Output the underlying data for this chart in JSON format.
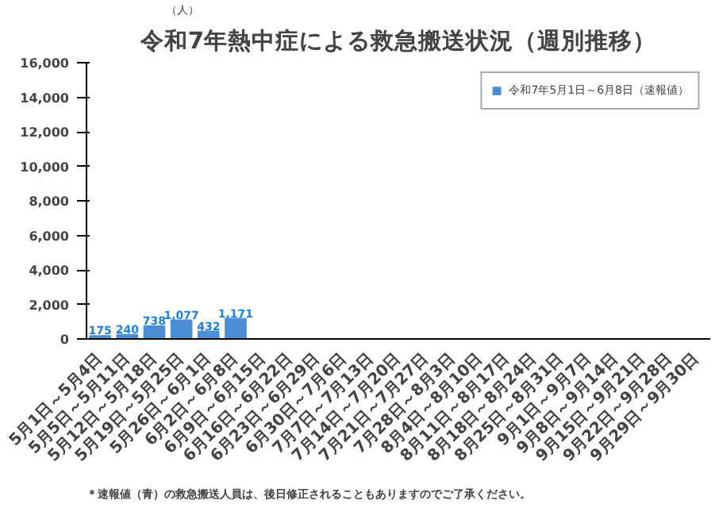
{
  "chart_data": {
    "type": "bar",
    "title": "令和7年熱中症による救急搬送状況（週別推移）",
    "ylabel": "（人）",
    "categories": [
      "5月1日～5月4日",
      "5月5日～5月11日",
      "5月12日～5月18日",
      "5月19日～5月25日",
      "5月26日～6月1日",
      "6月2日～6月8日",
      "6月9日～6月15日",
      "6月16日～6月22日",
      "6月23日～6月29日",
      "6月30日～7月6日",
      "7月7日～7月13日",
      "7月14日～7月20日",
      "7月21日～7月27日",
      "7月28日～8月3日",
      "8月4日～8月10日",
      "8月11日～8月17日",
      "8月18日～8月24日",
      "8月25日～8月31日",
      "9月1日～9月7日",
      "9月8日～9月14日",
      "9月15日～9月21日",
      "9月22日～9月28日",
      "9月29日～9月30日"
    ],
    "series": [
      {
        "name": "令和7年5月1日～6月8日（速報値）",
        "color": "#4a8fd6",
        "values": [
          175,
          240,
          738,
          1077,
          432,
          1171,
          null,
          null,
          null,
          null,
          null,
          null,
          null,
          null,
          null,
          null,
          null,
          null,
          null,
          null,
          null,
          null,
          null
        ],
        "value_labels": [
          "175",
          "240",
          "738",
          "1,077",
          "432",
          "1,171",
          null,
          null,
          null,
          null,
          null,
          null,
          null,
          null,
          null,
          null,
          null,
          null,
          null,
          null,
          null,
          null,
          null
        ]
      }
    ],
    "ylim": [
      0,
      16000
    ],
    "yticks": [
      0,
      {
        "value": 2000,
        "label": "2,000"
      },
      {
        "value": 4000,
        "label": "4,000"
      },
      {
        "value": 6000,
        "label": "6,000"
      },
      {
        "value": 8000,
        "label": "8,000"
      },
      {
        "value": 10000,
        "label": "10,000"
      },
      {
        "value": 12000,
        "label": "12,000"
      },
      {
        "value": 14000,
        "label": "14,000"
      },
      {
        "value": 16000,
        "label": "16,000"
      }
    ],
    "legend": "top right",
    "grid": false,
    "annotations": [
      "＊速報値（青）の救急搬送人員は、後日修正されることもありますのでご了承ください。"
    ]
  }
}
